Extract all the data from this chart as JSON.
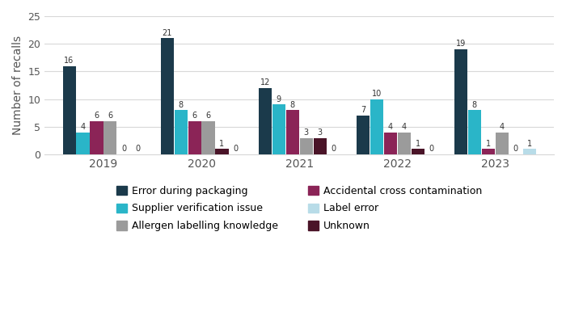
{
  "years": [
    "2019",
    "2020",
    "2021",
    "2022",
    "2023"
  ],
  "categories": [
    "Error during packaging",
    "Supplier verification issue",
    "Accidental cross contamination",
    "Allergen labelling knowledge",
    "Unknown",
    "Label error"
  ],
  "colors": [
    "#1b3a4b",
    "#2ab5c8",
    "#8b2457",
    "#9b9b9b",
    "#4a1428",
    "#b8dce8"
  ],
  "values": {
    "Error during packaging": [
      16,
      21,
      12,
      7,
      19
    ],
    "Supplier verification issue": [
      4,
      8,
      9,
      10,
      8
    ],
    "Accidental cross contamination": [
      6,
      6,
      8,
      4,
      1
    ],
    "Allergen labelling knowledge": [
      6,
      6,
      3,
      4,
      4
    ],
    "Unknown": [
      0,
      1,
      3,
      1,
      0
    ],
    "Label error": [
      0,
      0,
      0,
      0,
      1
    ]
  },
  "legend_order": [
    0,
    1,
    3,
    2,
    5,
    4
  ],
  "legend_labels": [
    "Error during packaging",
    "Supplier verification issue",
    "Allergen labelling knowledge",
    "Accidental cross contamination",
    "Label error",
    "Unknown"
  ],
  "ylim": [
    0,
    25
  ],
  "yticks": [
    0,
    5,
    10,
    15,
    20,
    25
  ],
  "ylabel": "Number of recalls",
  "background_color": "#ffffff",
  "bar_width": 0.14,
  "label_fontsize": 7.0
}
